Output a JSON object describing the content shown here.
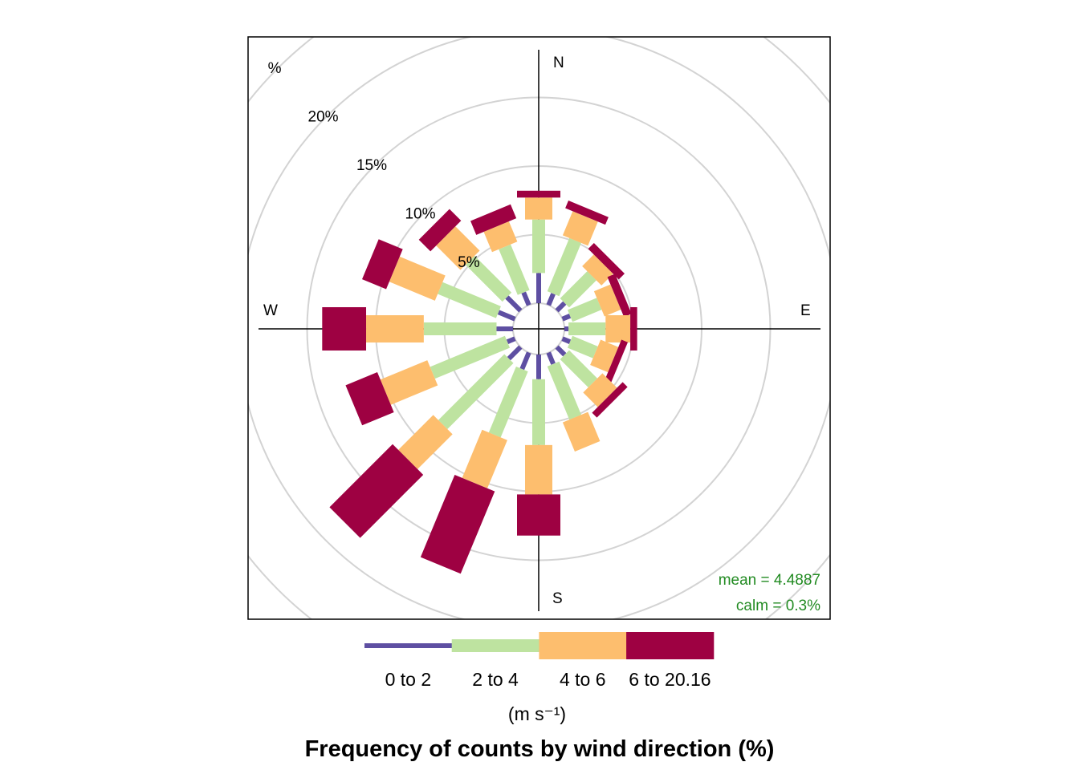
{
  "chart_data": {
    "type": "polar-stacked-bar",
    "title": "Frequency of counts by wind direction (%)",
    "directions": [
      "N",
      "NNE",
      "NE",
      "ENE",
      "E",
      "ESE",
      "SE",
      "SSE",
      "S",
      "SSW",
      "SW",
      "WSW",
      "W",
      "WNW",
      "NW",
      "NNW"
    ],
    "angles_deg": [
      0,
      22.5,
      45,
      67.5,
      90,
      112.5,
      135,
      157.5,
      180,
      202.5,
      225,
      247.5,
      270,
      292.5,
      315,
      337.5
    ],
    "speed_bins": [
      "0 to 2",
      "2 to 4",
      "4 to 6",
      "6 to 20.16"
    ],
    "series": [
      {
        "name": "0 to 2",
        "values": [
          2.2,
          0.9,
          0.8,
          0.6,
          0.3,
          0.6,
          0.8,
          0.9,
          1.8,
          1.3,
          1.2,
          0.6,
          1.2,
          1.3,
          1.4,
          1.0
        ]
      },
      {
        "name": "2 to 4",
        "values": [
          3.9,
          4.2,
          2.8,
          2.3,
          2.7,
          2.0,
          2.9,
          4.2,
          4.8,
          5.2,
          6.8,
          5.9,
          5.3,
          4.6,
          3.8,
          3.6
        ]
      },
      {
        "name": "4 to 6",
        "values": [
          1.6,
          1.9,
          1.2,
          1.3,
          1.8,
          1.4,
          1.5,
          2.3,
          3.6,
          3.8,
          3.6,
          3.7,
          4.2,
          3.6,
          2.5,
          1.6
        ]
      },
      {
        "name": "6 to 20.16",
        "values": [
          0.5,
          0.6,
          0.6,
          0.6,
          0.5,
          0.5,
          0.5,
          0.0,
          3.0,
          6.5,
          6.5,
          2.5,
          3.2,
          1.9,
          1.2,
          1.1
        ]
      }
    ],
    "colors": [
      "#5E4FA2",
      "#BEE3A0",
      "#FDBE6E",
      "#9E0142"
    ],
    "ring_labels": [
      "5%",
      "10%",
      "15%",
      "20%",
      "%"
    ],
    "rings_pct": [
      5,
      10,
      15,
      20,
      25
    ],
    "compass_labels": {
      "N": "N",
      "E": "E",
      "S": "S",
      "W": "W"
    },
    "calm_pct": 0.3,
    "stats": {
      "mean": "mean = 4.4887",
      "calm": "calm = 0.3%"
    },
    "legend": {
      "labels": [
        "0 to 2",
        "2 to 4",
        "4 to 6",
        "6 to 20.16"
      ],
      "unit": "(m s⁻¹)"
    },
    "grid": true
  }
}
